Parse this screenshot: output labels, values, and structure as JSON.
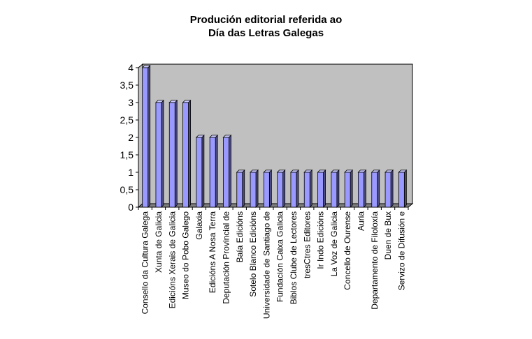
{
  "chart_data": {
    "type": "bar",
    "title_lines": [
      "Produción editorial referida ao",
      "Día das Letras Galegas"
    ],
    "xlabel": "",
    "ylabel": "",
    "ylim": [
      0,
      4
    ],
    "yticks": [
      "0",
      "0,5",
      "1",
      "1,5",
      "2",
      "2,5",
      "3",
      "3,5",
      "4"
    ],
    "grid": false,
    "legend": "none",
    "colors": {
      "bar_front": "#9999ff",
      "bar_side": "#4d4d80",
      "bar_top": "#ccccff",
      "plot_bg": "#c0c0c0",
      "floor": "#808080"
    },
    "categories": [
      "Consello da Cultura Galega",
      "Xunta de Galicia",
      "Edicións Xerais de Galicia",
      "Museo do Pobo Galego",
      "Galaxia",
      "Edicións A Nosa Terra",
      "Deputación Provincial de",
      "Baía Edicións",
      "Sotelo Blanco Edicións",
      "Universidade de Santiago de",
      "Fundación Caixa Galicia",
      "Biblos Clube de Lectores",
      "tresCtres Editores",
      "Ir Indo Edicións",
      "La Voz de Galicia",
      "Concello de Ourense",
      "Auria",
      "Departamento de Filoloxía",
      "Duen de Bux",
      "Servizo de Difusión e"
    ],
    "values": [
      4,
      3,
      3,
      3,
      2,
      2,
      2,
      1,
      1,
      1,
      1,
      1,
      1,
      1,
      1,
      1,
      1,
      1,
      1,
      1
    ]
  }
}
